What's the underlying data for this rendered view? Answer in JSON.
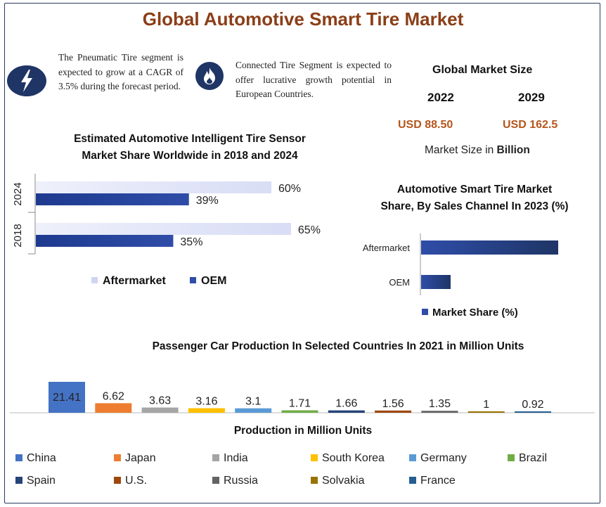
{
  "title": "Global Automotive Smart Tire Market",
  "notes": [
    {
      "icon": "lightning-icon",
      "text": "The Pneumatic Tire segment is expected to grow at a CAGR of 3.5% during the forecast period."
    },
    {
      "icon": "fire-icon",
      "text": "Connected Tire Segment is expected to offer lucrative growth potential in European Countries."
    }
  ],
  "market_size": {
    "title": "Global Market Size",
    "years": [
      "2022",
      "2029"
    ],
    "values": [
      "USD 88.50",
      "USD 162.5"
    ],
    "unit_note_prefix": "Market Size in ",
    "unit_note_bold": "Billion"
  },
  "colors": {
    "title": "#8b3e17",
    "usd": "#b5561c",
    "oem": "#2f4da8",
    "aftermarket_light": "#d9ddf5",
    "icon_bg": "#1f3566"
  },
  "chart_data": [
    {
      "type": "bar",
      "orientation": "horizontal",
      "title": "Estimated Automotive Intelligent Tire Sensor Market Share Worldwide in 2018 and 2024",
      "categories": [
        "2024",
        "2018"
      ],
      "series": [
        {
          "name": "Aftermarket",
          "values": [
            60,
            65
          ],
          "labels": [
            "60%",
            "65%"
          ],
          "color": "#d9ddf5"
        },
        {
          "name": "OEM",
          "values": [
            39,
            35
          ],
          "labels": [
            "39%",
            "35%"
          ],
          "color": "#2f4da8"
        }
      ],
      "legend": "bottom"
    },
    {
      "type": "bar",
      "orientation": "horizontal",
      "title": "Automotive Smart Tire Market Share, By Sales Channel In 2023 (%)",
      "categories": [
        "Aftermarket",
        "OEM"
      ],
      "series": [
        {
          "name": "Market Share (%)",
          "values": [
            79,
            17
          ],
          "color": "#2f4da8"
        }
      ],
      "legend": "bottom"
    },
    {
      "type": "bar",
      "title": "Passenger Car Production In Selected Countries In 2021 in Million Units",
      "xlabel": "Production in Million Units",
      "categories": [
        "China",
        "Japan",
        "India",
        "South Korea",
        "Germany",
        "Brazil",
        "Spain",
        "U.S.",
        "Russia",
        "Solvakia",
        "France"
      ],
      "values": [
        21.41,
        6.62,
        3.63,
        3.16,
        3.1,
        1.71,
        1.66,
        1.56,
        1.35,
        1,
        0.92
      ],
      "labels": [
        "21.41",
        "6.62",
        "3.63",
        "3.16",
        "3.1",
        "1.71",
        "1.66",
        "1.56",
        "1.35",
        "1",
        "0.92"
      ],
      "colors": [
        "#4472c4",
        "#ed7d31",
        "#a5a5a5",
        "#ffc000",
        "#5b9bd5",
        "#70ad47",
        "#264478",
        "#9e480e",
        "#636363",
        "#997300",
        "#255e91"
      ],
      "legend": "bottom"
    }
  ]
}
